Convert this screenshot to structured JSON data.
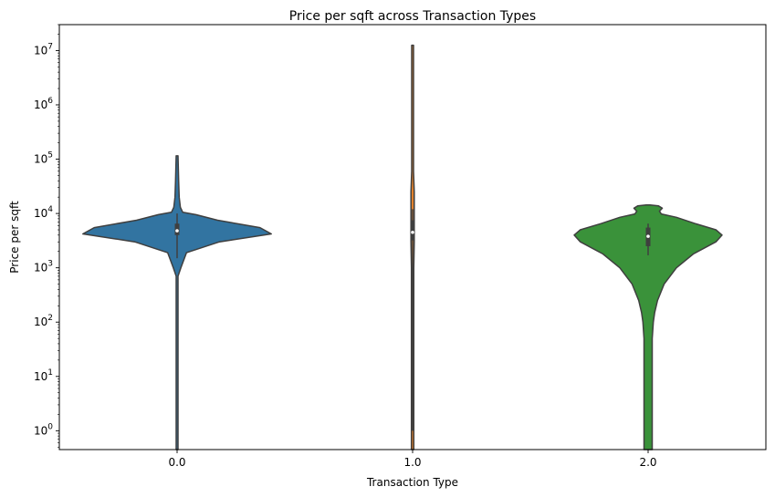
{
  "chart_data": {
    "type": "violin",
    "title": "Price per sqft across Transaction Types",
    "xlabel": "Transaction Type",
    "ylabel": "Price per sqft",
    "yscale": "log",
    "ylim": [
      0.45,
      30000000
    ],
    "categories": [
      "0.0",
      "1.0",
      "2.0"
    ],
    "ytick_exponents": [
      0,
      1,
      2,
      3,
      4,
      5,
      6,
      7
    ],
    "ytick_base": "10",
    "grid": false,
    "violins": [
      {
        "category": "0.0",
        "color": "#3274a1",
        "profile": [
          [
            0.45,
            0.01
          ],
          [
            700,
            0.01
          ],
          [
            1000,
            0.04
          ],
          [
            1900,
            0.1
          ],
          [
            3000,
            0.45
          ],
          [
            4200,
            1.0
          ],
          [
            5500,
            0.88
          ],
          [
            7500,
            0.43
          ],
          [
            9500,
            0.2
          ],
          [
            10500,
            0.06
          ],
          [
            13000,
            0.035
          ],
          [
            20000,
            0.022
          ],
          [
            40000,
            0.016
          ],
          [
            115000,
            0.008
          ]
        ],
        "quartiles": [
          4000,
          6500
        ],
        "median": 4800,
        "whiskers": [
          1500,
          10000
        ]
      },
      {
        "category": "1.0",
        "color": "#e1812c",
        "profile": [
          [
            0.45,
            0.013
          ],
          [
            1,
            0.013
          ],
          [
            1000,
            0.013
          ],
          [
            3000,
            0.017
          ],
          [
            6000,
            0.017
          ],
          [
            25000,
            0.017
          ],
          [
            60000,
            0.009
          ],
          [
            130000,
            0.004
          ],
          [
            12500000,
            0.003
          ]
        ],
        "quartiles": [
          3200,
          7500
        ],
        "median": 4500,
        "whiskers": [
          1,
          12000
        ]
      },
      {
        "category": "2.0",
        "color": "#3a923a",
        "profile": [
          [
            0.45,
            0.044
          ],
          [
            50,
            0.044
          ],
          [
            100,
            0.055
          ],
          [
            150,
            0.07
          ],
          [
            250,
            0.1
          ],
          [
            500,
            0.17
          ],
          [
            1000,
            0.3
          ],
          [
            1800,
            0.48
          ],
          [
            3000,
            0.72
          ],
          [
            4000,
            0.785
          ],
          [
            5000,
            0.72
          ],
          [
            6500,
            0.5
          ],
          [
            8500,
            0.3
          ],
          [
            9800,
            0.14
          ],
          [
            11000,
            0.12
          ],
          [
            12500,
            0.15
          ],
          [
            13800,
            0.11
          ],
          [
            14300,
            0.02
          ]
        ],
        "quartiles": [
          2500,
          5500
        ],
        "median": 3800,
        "whiskers": [
          1700,
          6500
        ]
      }
    ]
  }
}
